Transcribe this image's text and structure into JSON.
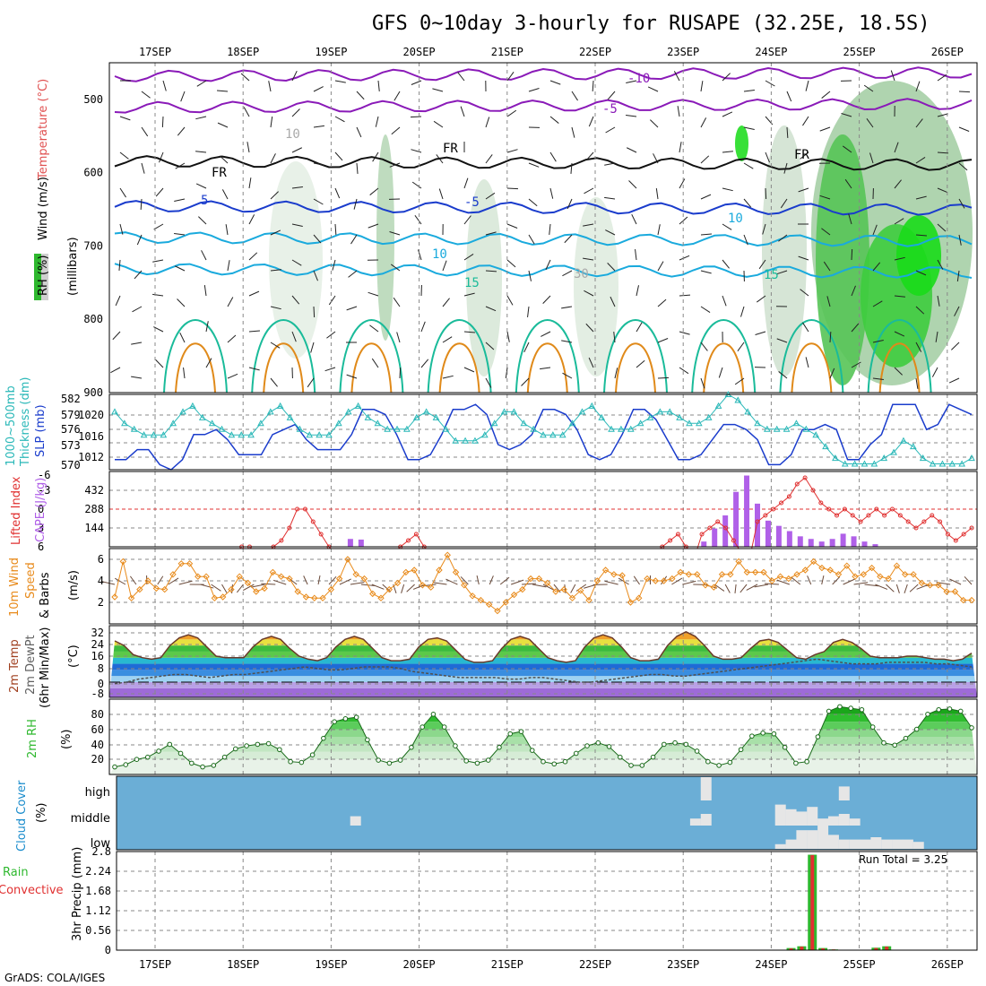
{
  "title": "GFS 0~10day 3-hourly for RUSAPE (32.25E, 18.5S)",
  "footer": "GrADS: COLA/IGES",
  "days": [
    "17SEP",
    "18SEP",
    "19SEP",
    "20SEP",
    "21SEP",
    "22SEP",
    "23SEP",
    "24SEP",
    "25SEP",
    "26SEP"
  ],
  "colors": {
    "rh": "#2eb82e",
    "temp_purple": "#8a1ab8",
    "temp_blue": "#1a3ccc",
    "temp_cyan": "#1aaadd",
    "temp_teal": "#1abb9a",
    "temp_orange": "#e08a1a",
    "slp": "#1a3ccc",
    "thickness": "#2ab8b8",
    "cape": "#b060e8",
    "lifted": "#e03030",
    "wind": "#e88a1a",
    "cloud_bg": "#6baed6",
    "cloud": "#e6e6e6",
    "precip_total": "#2eb82e",
    "precip_conv": "#e03030"
  },
  "panels": {
    "upper": {
      "labels": [
        "Wind (m/s)",
        "Temperature (°C)",
        "RH (%)"
      ],
      "unit": "(millibars)",
      "yticks": [
        "500",
        "600",
        "700",
        "800",
        "900"
      ],
      "contour_labels": [
        "-10",
        "-5",
        "FR",
        "FR",
        "FR",
        "5",
        "-5",
        "10",
        "10",
        "15",
        "15",
        "10",
        "30"
      ]
    },
    "slp": {
      "labels": [
        "1000~500mb",
        "Thickness (dm)",
        "SLP (mb)"
      ],
      "left_ticks": [
        "582",
        "579",
        "576",
        "573",
        "570"
      ],
      "right_ticks": [
        "1020",
        "1016",
        "1012"
      ]
    },
    "cape": {
      "labels": [
        "Lifted Index",
        "CAPE (J/kg)"
      ],
      "li_ticks": [
        "-6",
        "-3",
        "0",
        "3",
        "6"
      ],
      "cape_ticks": [
        "432",
        "288",
        "144"
      ]
    },
    "wind": {
      "labels": [
        "10m Wind",
        "Speed",
        "& Barbs",
        "(m/s)"
      ],
      "yticks": [
        "6",
        "4",
        "2"
      ]
    },
    "temp": {
      "labels": [
        "2m Temp",
        "2m DewPt",
        "(6hr Min/Max)",
        "(°C)"
      ],
      "yticks": [
        "32",
        "24",
        "16",
        "8",
        "0",
        "-8"
      ]
    },
    "rh": {
      "labels": [
        "2m RH",
        "(%)"
      ],
      "yticks": [
        "80",
        "60",
        "40",
        "20"
      ]
    },
    "cloud": {
      "labels": [
        "Cloud Cover",
        "(%)"
      ],
      "levels": [
        "high",
        "middle",
        "low"
      ]
    },
    "precip": {
      "labels": [
        "Total / Rain",
        "Convective",
        "3hr Precip (mm)"
      ],
      "yticks": [
        "2.8",
        "2.24",
        "1.68",
        "1.12",
        "0.56",
        "0"
      ],
      "run_total": "Run Total = 3.25"
    }
  },
  "chart_data": [
    {
      "type": "line",
      "title": "SLP (mb)",
      "x_unit": "3-hourly steps from 17SEP",
      "series": [
        {
          "name": "SLP (mb)",
          "values": [
            1011,
            1011,
            1013,
            1013,
            1010,
            1009,
            1011,
            1016,
            1016,
            1017,
            1015,
            1012,
            1012,
            1012,
            1016,
            1017,
            1018,
            1015,
            1013,
            1013,
            1013,
            1016,
            1021,
            1021,
            1020,
            1016,
            1011,
            1011,
            1012,
            1016,
            1021,
            1021,
            1022,
            1020,
            1014,
            1013,
            1014,
            1016,
            1021,
            1021,
            1020,
            1017,
            1012,
            1011,
            1012,
            1016,
            1021,
            1021,
            1019,
            1015,
            1011,
            1011,
            1012,
            1015,
            1018,
            1018,
            1017,
            1015,
            1010,
            1010,
            1012,
            1017,
            1017,
            1018,
            1017,
            1011,
            1011,
            1014,
            1016,
            1022,
            1022,
            1022,
            1017,
            1018,
            1022,
            1021,
            1020
          ]
        },
        {
          "name": "1000~500mb Thickness (dm)",
          "values": [
            579,
            577,
            576,
            575,
            575,
            575,
            577,
            579,
            580,
            578,
            577,
            576,
            575,
            575,
            575,
            577,
            579,
            580,
            578,
            576,
            575,
            575,
            575,
            577,
            579,
            580,
            578,
            577,
            576,
            576,
            576,
            578,
            579,
            578,
            576,
            574,
            574,
            574,
            575,
            577,
            579,
            579,
            577,
            576,
            575,
            575,
            575,
            577,
            579,
            580,
            578,
            576,
            576,
            576,
            577,
            578,
            579,
            579,
            578,
            577,
            577,
            578,
            580,
            582,
            581,
            579,
            577,
            576,
            576,
            576,
            577,
            576,
            575,
            573,
            571,
            570,
            570,
            570,
            570,
            571,
            572,
            574,
            573,
            571,
            570,
            570,
            570,
            570,
            571
          ]
        }
      ],
      "ylim_slp": [
        1009,
        1024
      ],
      "ylim_thickness": [
        569,
        582
      ]
    },
    {
      "type": "bar",
      "title": "CAPE (J/kg)",
      "series": [
        {
          "name": "CAPE (J/kg)",
          "points": [
            [
              22,
              60
            ],
            [
              23,
              55
            ],
            [
              55,
              40
            ],
            [
              56,
              140
            ],
            [
              57,
              240
            ],
            [
              58,
              420
            ],
            [
              59,
              545
            ],
            [
              60,
              330
            ],
            [
              61,
              200
            ],
            [
              62,
              160
            ],
            [
              63,
              120
            ],
            [
              64,
              80
            ],
            [
              65,
              60
            ],
            [
              66,
              40
            ],
            [
              67,
              60
            ],
            [
              68,
              100
            ],
            [
              69,
              80
            ],
            [
              70,
              40
            ],
            [
              71,
              20
            ]
          ]
        },
        {
          "name": "Lifted Index",
          "values": [
            8,
            8,
            8,
            8,
            8,
            8,
            8,
            8,
            8,
            8,
            8,
            8,
            8,
            8,
            8,
            8,
            6,
            6,
            8,
            8,
            6,
            5,
            3,
            0,
            0,
            2,
            4,
            6,
            8,
            8,
            8,
            8,
            8,
            8,
            8,
            8,
            6,
            5,
            4,
            6,
            8,
            8,
            8,
            8,
            8,
            8,
            8,
            8,
            8,
            8,
            8,
            8,
            8,
            8,
            8,
            8,
            8,
            8,
            8,
            8,
            8,
            8,
            8,
            8,
            8,
            8,
            8,
            8,
            8,
            6,
            5,
            4,
            6,
            8,
            4,
            3,
            2,
            3,
            5,
            7,
            8,
            2,
            1,
            0,
            -1,
            -2,
            -4,
            -5,
            -3,
            -1,
            0,
            1,
            0,
            1,
            2,
            1,
            0,
            1,
            0,
            1,
            2,
            3,
            2,
            1,
            2,
            4,
            5,
            4,
            3
          ]
        }
      ],
      "ylim_cape": [
        0,
        576
      ],
      "ylim_li": [
        6,
        -6
      ]
    },
    {
      "type": "line",
      "title": "10m Wind Speed (m/s)",
      "series": [
        {
          "name": "Speed",
          "values": [
            2.5,
            5.8,
            2.4,
            3.2,
            4.0,
            3.3,
            3.2,
            4.6,
            5.6,
            5.6,
            4.4,
            4.4,
            2.4,
            2.5,
            3.2,
            4.4,
            3.8,
            3.0,
            3.3,
            4.8,
            4.4,
            4.2,
            3.0,
            2.5,
            2.4,
            2.4,
            3.2,
            4.2,
            6.0,
            4.6,
            4.2,
            2.8,
            2.4,
            3.2,
            3.8,
            4.8,
            5.0,
            3.6,
            3.4,
            5.0,
            6.4,
            4.8,
            3.6,
            2.6,
            2.2,
            1.8,
            1.2,
            2.0,
            2.7,
            3.2,
            4.2,
            4.2,
            3.8,
            3.0,
            3.2,
            2.4,
            3.1,
            2.2,
            4.0,
            5.0,
            4.6,
            4.5,
            2.0,
            2.4,
            4.2,
            4.0,
            4.0,
            4.2,
            4.8,
            4.6,
            4.6,
            3.6,
            3.4,
            4.6,
            4.6,
            5.8,
            4.8,
            4.8,
            4.8,
            4.0,
            4.4,
            4.2,
            4.6,
            5.0,
            5.8,
            5.2,
            5.0,
            4.6,
            5.4,
            4.4,
            4.6,
            5.2,
            4.4,
            4.2,
            5.4,
            4.6,
            4.6,
            3.8,
            3.6,
            3.6,
            3.0,
            3.0,
            2.2,
            2.2
          ]
        }
      ],
      "ylim": [
        0,
        7
      ]
    },
    {
      "type": "area",
      "title": "2m Temp / 2m DewPt (°C)",
      "series": [
        {
          "name": "2m Temp",
          "values": [
            27,
            24,
            18,
            16,
            15,
            16,
            24,
            29,
            31,
            29,
            23,
            17,
            16,
            16,
            16,
            23,
            28,
            30,
            28,
            22,
            17,
            15,
            14,
            16,
            23,
            28,
            30,
            28,
            22,
            16,
            14,
            14,
            15,
            23,
            28,
            29,
            27,
            21,
            15,
            13,
            13,
            14,
            22,
            28,
            30,
            28,
            22,
            16,
            14,
            13,
            14,
            23,
            29,
            31,
            29,
            23,
            16,
            14,
            14,
            15,
            24,
            30,
            33,
            30,
            24,
            17,
            15,
            15,
            16,
            22,
            27,
            28,
            26,
            21,
            16,
            15,
            18,
            20,
            26,
            28,
            26,
            22,
            17,
            16,
            16,
            16,
            17,
            17,
            16,
            15,
            15,
            14,
            15,
            19
          ]
        },
        {
          "name": "2m DewPt",
          "values": [
            -1,
            0,
            2,
            3,
            4,
            5,
            5,
            4,
            3,
            4,
            5,
            5,
            6,
            7,
            8,
            9,
            10,
            9,
            8,
            8,
            9,
            10,
            10,
            10,
            9,
            7,
            6,
            5,
            4,
            3,
            3,
            3,
            3,
            2,
            2,
            3,
            3,
            2,
            1,
            0,
            0,
            1,
            2,
            3,
            4,
            5,
            5,
            4,
            4,
            5,
            6,
            7,
            8,
            9,
            10,
            11,
            12,
            13,
            14,
            15,
            14,
            13,
            12,
            12,
            12,
            13,
            13,
            13,
            13,
            12,
            12,
            11,
            10
          ]
        }
      ],
      "ylim": [
        -10,
        37
      ]
    },
    {
      "type": "area",
      "title": "2m RH (%)",
      "series": [
        {
          "name": "2m RH",
          "values": [
            10,
            13,
            20,
            23,
            31,
            40,
            28,
            15,
            10,
            12,
            23,
            34,
            38,
            40,
            41,
            33,
            17,
            16,
            26,
            48,
            70,
            74,
            76,
            46,
            19,
            15,
            19,
            36,
            63,
            80,
            63,
            38,
            18,
            15,
            19,
            36,
            54,
            57,
            32,
            17,
            14,
            17,
            28,
            38,
            42,
            37,
            23,
            12,
            12,
            23,
            40,
            42,
            40,
            31,
            17,
            12,
            16,
            33,
            51,
            55,
            54,
            36,
            15,
            17,
            50,
            84,
            90,
            88,
            86,
            63,
            42,
            39,
            48,
            60,
            80,
            86,
            87,
            84,
            62
          ]
        }
      ],
      "ylim": [
        0,
        100
      ]
    },
    {
      "type": "bar",
      "title": "Cloud Cover (%)",
      "series": [
        {
          "name": "high",
          "points": [
            [
              55,
              100
            ],
            [
              68,
              60
            ]
          ]
        },
        {
          "name": "middle",
          "points": [
            [
              22,
              40
            ],
            [
              54,
              30
            ],
            [
              55,
              50
            ],
            [
              62,
              90
            ],
            [
              63,
              70
            ],
            [
              64,
              60
            ],
            [
              65,
              80
            ],
            [
              66,
              30
            ],
            [
              67,
              40
            ],
            [
              68,
              50
            ],
            [
              69,
              30
            ]
          ]
        },
        {
          "name": "low",
          "points": [
            [
              62,
              20
            ],
            [
              63,
              40
            ],
            [
              64,
              80
            ],
            [
              65,
              80
            ],
            [
              66,
              100
            ],
            [
              67,
              60
            ],
            [
              68,
              40
            ],
            [
              69,
              40
            ],
            [
              70,
              40
            ],
            [
              71,
              50
            ],
            [
              72,
              40
            ],
            [
              73,
              40
            ],
            [
              74,
              40
            ],
            [
              75,
              30
            ]
          ]
        }
      ],
      "levels": [
        "high",
        "middle",
        "low"
      ]
    },
    {
      "type": "bar",
      "title": "3hr Precip (mm)",
      "ylim": [
        0,
        2.8
      ],
      "series": [
        {
          "name": "Total / Rain",
          "points": [
            [
              63,
              0.06
            ],
            [
              64,
              0.11
            ],
            [
              65,
              2.71
            ],
            [
              66,
              0.06
            ],
            [
              67,
              0.02
            ],
            [
              71,
              0.07
            ],
            [
              72,
              0.11
            ]
          ]
        },
        {
          "name": "Convective",
          "points": [
            [
              63,
              0.05
            ],
            [
              64,
              0.1
            ],
            [
              65,
              2.7
            ],
            [
              66,
              0.05
            ],
            [
              67,
              0.02
            ],
            [
              71,
              0.06
            ],
            [
              72,
              0.1
            ]
          ]
        }
      ],
      "run_total": "Run Total = 3.25"
    }
  ]
}
